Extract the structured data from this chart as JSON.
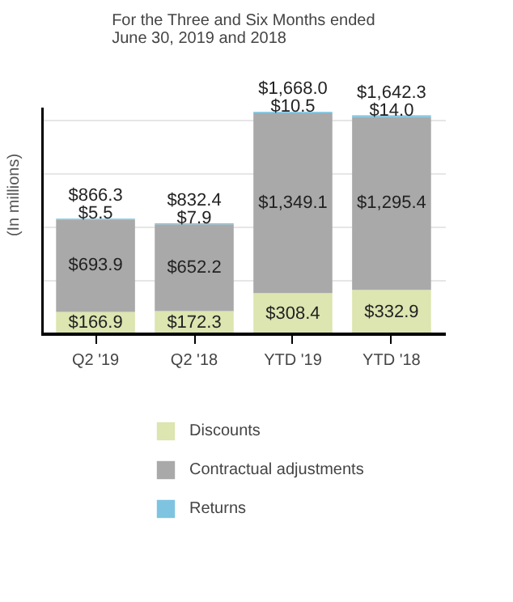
{
  "chart_data": {
    "type": "bar",
    "title": "For the Three and Six Months ended\nJune 30, 2019 and 2018",
    "ylabel": "(In millions)",
    "categories": [
      "Q2 '19",
      "Q2 '18",
      "YTD '19",
      "YTD '18"
    ],
    "stacked": true,
    "series": [
      {
        "name": "Discounts",
        "color": "#dde5b0",
        "values": [
          166.9,
          172.3,
          308.4,
          332.9
        ],
        "value_labels": [
          "$166.9",
          "$172.3",
          "$308.4",
          "$332.9"
        ]
      },
      {
        "name": "Contractual adjustments",
        "color": "#a9a9a9",
        "values": [
          693.9,
          652.2,
          1349.1,
          1295.4
        ],
        "value_labels": [
          "$693.9",
          "$652.2",
          "$1,349.1",
          "$1,295.4"
        ]
      },
      {
        "name": "Returns",
        "color": "#7ec4e0",
        "values": [
          5.5,
          7.9,
          10.5,
          14.0
        ],
        "value_labels": [
          "$5.5",
          "$7.9",
          "$10.5",
          "$14.0"
        ]
      }
    ],
    "totals": [
      "$866.3",
      "$832.4",
      "$1,668.0",
      "$1,642.3"
    ],
    "ylim": [
      0,
      1700
    ],
    "yticks": [
      {
        "value": 400,
        "label": null
      },
      {
        "value": 800,
        "label": null
      },
      {
        "value": 1200,
        "label": null
      },
      {
        "value": 1600,
        "label": null
      }
    ],
    "grid": "y",
    "legend": "bottom",
    "tick_labels": "x"
  }
}
